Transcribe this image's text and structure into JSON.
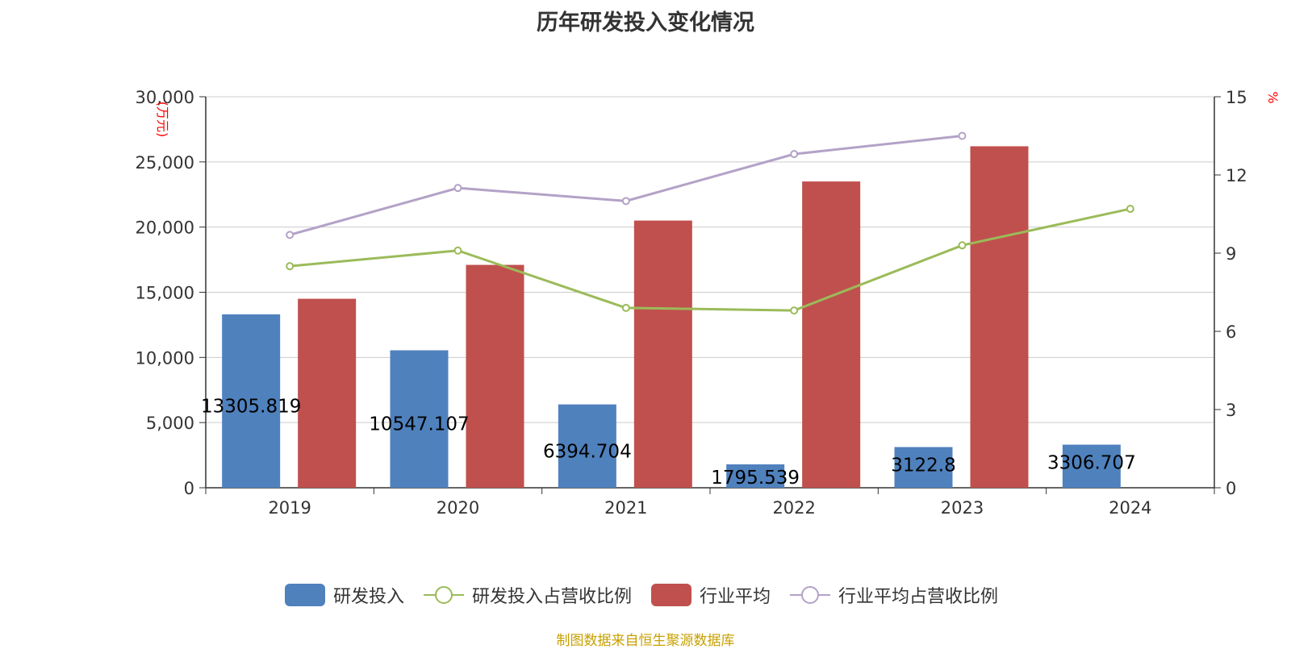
{
  "title": "历年研发投入变化情况",
  "source_text": "制图数据来自恒生聚源数据库",
  "colors": {
    "rd_bar": "#4f81bd",
    "industry_bar": "#c0504d",
    "rd_ratio_line": "#9bbb59",
    "industry_ratio_line": "#b3a2c7",
    "axis_unit": "#ff0000",
    "source": "#c8a000"
  },
  "chart_data": {
    "type": "bar",
    "categories": [
      "2019",
      "2020",
      "2021",
      "2022",
      "2023",
      "2024"
    ],
    "y_left": {
      "label": "(万元)",
      "ylim": [
        0,
        30000
      ],
      "ticks": [
        "0",
        "5,000",
        "10,000",
        "15,000",
        "20,000",
        "25,000",
        "30,000"
      ]
    },
    "y_right": {
      "label": "%",
      "ylim": [
        0,
        15
      ],
      "ticks": [
        "0",
        "3",
        "6",
        "9",
        "12",
        "15"
      ]
    },
    "grid": true,
    "legend_position": "bottom",
    "series": [
      {
        "name": "研发投入",
        "type": "bar",
        "axis": "left",
        "values": [
          13305.819,
          10547.107,
          6394.704,
          1795.539,
          3122.8,
          3306.707
        ],
        "labels": [
          "13305.819",
          "10547.107",
          "6394.704",
          "1795.539",
          "3122.8",
          "3306.707"
        ]
      },
      {
        "name": "研发投入占营收比例",
        "type": "line",
        "axis": "right",
        "values": [
          8.5,
          9.1,
          6.9,
          6.8,
          9.3,
          10.7
        ]
      },
      {
        "name": "行业平均",
        "type": "bar",
        "axis": "left",
        "values": [
          14500,
          17100,
          20500,
          23500,
          26200,
          null
        ]
      },
      {
        "name": "行业平均占营收比例",
        "type": "line",
        "axis": "right",
        "values": [
          9.7,
          11.5,
          11.0,
          12.8,
          13.5,
          null
        ]
      }
    ]
  }
}
